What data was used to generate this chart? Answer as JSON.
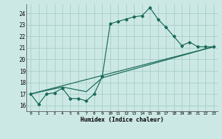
{
  "xlabel": "Humidex (Indice chaleur)",
  "bg_color": "#cce8e4",
  "grid_color": "#aad0cc",
  "line_color": "#1a6b5a",
  "xlim": [
    -0.5,
    23.5
  ],
  "ylim": [
    15.5,
    24.8
  ],
  "xticks": [
    0,
    1,
    2,
    3,
    4,
    5,
    6,
    7,
    8,
    9,
    10,
    11,
    12,
    13,
    14,
    15,
    16,
    17,
    18,
    19,
    20,
    21,
    22,
    23
  ],
  "yticks": [
    16,
    17,
    18,
    19,
    20,
    21,
    22,
    23,
    24
  ],
  "line1_x": [
    0,
    1,
    2,
    3,
    4,
    5,
    6,
    7,
    8,
    9,
    10,
    11,
    12,
    13,
    14,
    15,
    16,
    17,
    18,
    19,
    20,
    21,
    22,
    23
  ],
  "line1_y": [
    17.0,
    16.1,
    17.0,
    17.1,
    17.5,
    16.6,
    16.6,
    16.4,
    17.0,
    18.5,
    23.1,
    23.3,
    23.5,
    23.7,
    23.8,
    24.5,
    23.5,
    22.8,
    22.0,
    21.2,
    21.5,
    21.1,
    21.1,
    21.1
  ],
  "line2_x": [
    0,
    23
  ],
  "line2_y": [
    17.0,
    21.1
  ],
  "line3_x": [
    0,
    4,
    7,
    9,
    23
  ],
  "line3_y": [
    17.0,
    17.6,
    17.2,
    18.4,
    21.1
  ]
}
